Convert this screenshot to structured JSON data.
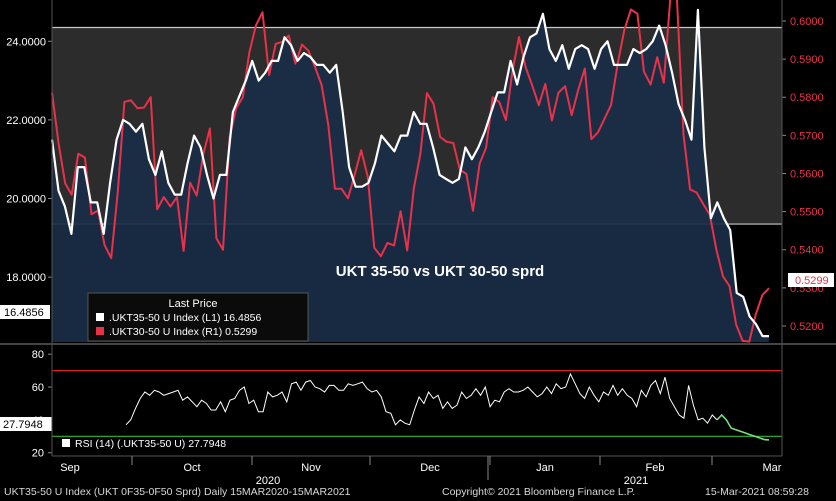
{
  "chart_data": [
    {
      "type": "line",
      "title": "UKT 35-50 vs UKT 30-50 sprd",
      "y_left": {
        "ylim": [
          16.35,
          25.05
        ],
        "ticks": [
          "24.0000",
          "22.0000",
          "20.0000",
          "18.0000"
        ],
        "last_value_label": "16.4856"
      },
      "y_right": {
        "ylim": [
          0.5158,
          0.6055
        ],
        "ticks": [
          "0.6000",
          "0.5900",
          "0.5800",
          "0.5700",
          "0.5600",
          "0.5500",
          "0.5400",
          "0.5300",
          "0.5200"
        ],
        "last_value_label": "0.5299"
      },
      "hlines": [
        {
          "axis": "left",
          "value": 24.35,
          "color": "#c8c8c8"
        },
        {
          "axis": "left",
          "value": 19.35,
          "color": "#c8c8c8"
        }
      ],
      "legend": {
        "title": "Last Price",
        "entries": [
          {
            "label": ".UKT35-50 U Index  (L1) 16.4856",
            "color": "#ffffff"
          },
          {
            "label": ".UKT30-50 U Index  (R1)  0.5299",
            "color": "#e8324a"
          }
        ]
      },
      "series": [
        {
          "axis": "left",
          "color": "#ffffff",
          "values": [
            21.5,
            20.2,
            19.8,
            19.1,
            20.8,
            20.8,
            19.9,
            19.9,
            19.1,
            20.4,
            21.5,
            22.0,
            21.9,
            21.7,
            21.9,
            21.0,
            20.6,
            21.2,
            20.4,
            20.1,
            20.1,
            20.9,
            21.6,
            21.3,
            20.6,
            20.0,
            20.6,
            20.6,
            22.2,
            22.6,
            23.0,
            23.5,
            23.0,
            23.2,
            23.5,
            23.5,
            24.1,
            23.9,
            23.5,
            23.7,
            23.6,
            23.4,
            23.4,
            23.2,
            23.4,
            22.2,
            20.8,
            20.3,
            20.3,
            20.4,
            20.9,
            21.6,
            21.4,
            21.2,
            21.6,
            21.6,
            22.2,
            21.9,
            21.9,
            21.3,
            20.6,
            20.5,
            20.4,
            20.5,
            21.3,
            21.0,
            21.3,
            21.7,
            22.2,
            22.7,
            22.7,
            23.5,
            22.9,
            23.6,
            24.1,
            24.2,
            24.7,
            23.8,
            23.5,
            23.9,
            23.3,
            23.8,
            23.9,
            23.8,
            23.3,
            23.8,
            24.0,
            23.4,
            23.4,
            23.4,
            23.8,
            23.7,
            23.8,
            24.0,
            24.4,
            23.9,
            23.2,
            22.4,
            22.0,
            21.5,
            24.8,
            21.3,
            19.5,
            19.9,
            19.5,
            19.2,
            17.6,
            17.5,
            17.0,
            16.8,
            16.5,
            16.5
          ]
        },
        {
          "axis": "right",
          "color": "#e8324a",
          "values": [
            0.5812,
            0.5679,
            0.5574,
            0.5544,
            0.5652,
            0.5642,
            0.5493,
            0.5503,
            0.5412,
            0.5378,
            0.5552,
            0.5788,
            0.5792,
            0.5771,
            0.5773,
            0.58,
            0.5506,
            0.5538,
            0.5513,
            0.5538,
            0.5397,
            0.5576,
            0.5542,
            0.565,
            0.5718,
            0.543,
            0.54,
            0.5694,
            0.5771,
            0.58,
            0.5917,
            0.5988,
            0.6023,
            0.5858,
            0.594,
            0.5945,
            0.5962,
            0.5888,
            0.5938,
            0.5922,
            0.5879,
            0.5831,
            0.5727,
            0.556,
            0.556,
            0.5535,
            0.5596,
            0.5661,
            0.5592,
            0.5405,
            0.5383,
            0.5418,
            0.5411,
            0.5501,
            0.5398,
            0.556,
            0.5652,
            0.5811,
            0.5783,
            0.5696,
            0.5683,
            0.568,
            0.561,
            0.5599,
            0.5502,
            0.5626,
            0.5668,
            0.58,
            0.5787,
            0.574,
            0.5869,
            0.5958,
            0.5879,
            0.5831,
            0.5779,
            0.5835,
            0.5739,
            0.5812,
            0.5829,
            0.5753,
            0.5819,
            0.5875,
            0.569,
            0.5708,
            0.5744,
            0.578,
            0.5888,
            0.5976,
            0.603,
            0.6019,
            0.5867,
            0.5833,
            0.5905,
            0.5838,
            0.606,
            0.606,
            0.5702,
            0.5558,
            0.555,
            0.552,
            0.5492,
            0.54,
            0.533,
            0.5305,
            0.5204,
            0.5161,
            0.5159,
            0.5231,
            0.5281,
            0.5299
          ]
        }
      ]
    },
    {
      "type": "line",
      "title": "",
      "ylim": [
        18,
        85
      ],
      "ticks": [
        "80",
        "60",
        "40",
        "20"
      ],
      "last_value_label": "27.7948",
      "hlines": [
        {
          "value": 70,
          "color": "#d42020"
        },
        {
          "value": 30,
          "color": "#2eb82e"
        }
      ],
      "legend": {
        "entries": [
          {
            "label": "RSI (14) (.UKT35-50 U) 27.7948",
            "color": "#ffffff"
          }
        ]
      },
      "series": [
        {
          "name": "RSI (14) (.UKT35-50 U)",
          "color": "#ffffff",
          "values": [
            37,
            40,
            47,
            53,
            57,
            55,
            58,
            57,
            55,
            56,
            57,
            58,
            52,
            54,
            51,
            48,
            52,
            50,
            46,
            46,
            51,
            45,
            52,
            53,
            58,
            60,
            50,
            52,
            45,
            45,
            57,
            54,
            55,
            57,
            51,
            62,
            63,
            58,
            63,
            64,
            60,
            59,
            57,
            61,
            61,
            58,
            58,
            62,
            61,
            62,
            63,
            59,
            57,
            58,
            54,
            45,
            44,
            37,
            40,
            38,
            37,
            46,
            54,
            50,
            57,
            53,
            55,
            47,
            51,
            47,
            49,
            57,
            53,
            55,
            59,
            55,
            60,
            48,
            52,
            51,
            57,
            59,
            57,
            57,
            58,
            60,
            57,
            54,
            56,
            60,
            56,
            62,
            59,
            60,
            68,
            62,
            56,
            53,
            60,
            55,
            51,
            57,
            55,
            61,
            55,
            59,
            55,
            53,
            48,
            58,
            54,
            61,
            64,
            56,
            66,
            53,
            48,
            43,
            41,
            61,
            49,
            40,
            41,
            38,
            43,
            40,
            43,
            40,
            35,
            34,
            33,
            32,
            31,
            30,
            29,
            28,
            27.8
          ]
        }
      ],
      "green_tail_from_index": 125
    }
  ],
  "x_axis": {
    "months": [
      "Sep",
      "Oct",
      "Nov",
      "Dec",
      "Jan",
      "Feb",
      "Mar"
    ],
    "years": [
      "2020",
      "2021"
    ]
  },
  "footer": {
    "left": "UKT35-50 U Index (UKT 0F35-0F50 Sprd)  Daily 15MAR2020-15MAR2021",
    "mid": "Copyright© 2021 Bloomberg Finance L.P.",
    "right": "15-Mar-2021 08:59:28"
  },
  "colors": {
    "background": "#000000",
    "band": "#2c2c2c",
    "area": "#1a2e47",
    "red": "#e8324a",
    "white": "#ffffff",
    "last_label_bg": "#ffffff"
  }
}
